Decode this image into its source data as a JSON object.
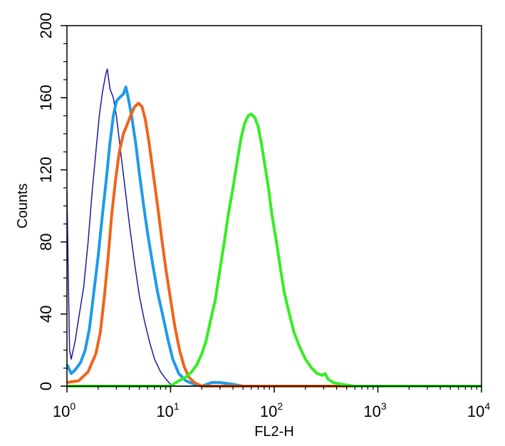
{
  "chart_data": {
    "type": "line",
    "title": "",
    "xlabel": "FL2-H",
    "ylabel": "Counts",
    "xscale": "log",
    "xlim": [
      1,
      10000
    ],
    "ylim": [
      0,
      200
    ],
    "x_ticks": [
      {
        "base": "10",
        "exp": "0",
        "value": 1
      },
      {
        "base": "10",
        "exp": "1",
        "value": 10
      },
      {
        "base": "10",
        "exp": "2",
        "value": 100
      },
      {
        "base": "10",
        "exp": "3",
        "value": 1000
      },
      {
        "base": "10",
        "exp": "4",
        "value": 10000
      }
    ],
    "y_ticks": [
      {
        "label": "0",
        "value": 0
      },
      {
        "label": "40",
        "value": 40
      },
      {
        "label": "80",
        "value": 80
      },
      {
        "label": "120",
        "value": 120
      },
      {
        "label": "160",
        "value": 160
      },
      {
        "label": "200",
        "value": 200
      }
    ],
    "grid": false,
    "legend": "none",
    "series": [
      {
        "color": "#1a1aa0",
        "stroke": 1.5,
        "points": [
          [
            1.0,
            108
          ],
          [
            1.03,
            60
          ],
          [
            1.06,
            20
          ],
          [
            1.1,
            15
          ],
          [
            1.2,
            25
          ],
          [
            1.3,
            38
          ],
          [
            1.45,
            55
          ],
          [
            1.6,
            80
          ],
          [
            1.75,
            108
          ],
          [
            1.9,
            130
          ],
          [
            2.05,
            150
          ],
          [
            2.2,
            163
          ],
          [
            2.35,
            172
          ],
          [
            2.45,
            176
          ],
          [
            2.6,
            165
          ],
          [
            2.8,
            160
          ],
          [
            3.0,
            150
          ],
          [
            3.3,
            130
          ],
          [
            3.6,
            112
          ],
          [
            4.0,
            90
          ],
          [
            4.5,
            68
          ],
          [
            5.0,
            50
          ],
          [
            5.6,
            36
          ],
          [
            6.3,
            24
          ],
          [
            7.0,
            15
          ],
          [
            8.0,
            8
          ],
          [
            9.0,
            4
          ],
          [
            10.0,
            1
          ],
          [
            11.0,
            0
          ],
          [
            10000,
            0
          ]
        ]
      },
      {
        "color": "#1e9be8",
        "stroke": 4,
        "points": [
          [
            1.0,
            12
          ],
          [
            1.1,
            7
          ],
          [
            1.2,
            9
          ],
          [
            1.35,
            13
          ],
          [
            1.5,
            20
          ],
          [
            1.65,
            32
          ],
          [
            1.8,
            50
          ],
          [
            2.0,
            72
          ],
          [
            2.2,
            95
          ],
          [
            2.4,
            115
          ],
          [
            2.6,
            135
          ],
          [
            2.8,
            150
          ],
          [
            3.0,
            158
          ],
          [
            3.2,
            160
          ],
          [
            3.5,
            162
          ],
          [
            3.7,
            166
          ],
          [
            3.9,
            160
          ],
          [
            4.2,
            150
          ],
          [
            4.6,
            135
          ],
          [
            5.0,
            118
          ],
          [
            5.5,
            100
          ],
          [
            6.0,
            85
          ],
          [
            6.7,
            68
          ],
          [
            7.5,
            52
          ],
          [
            8.5,
            38
          ],
          [
            9.5,
            25
          ],
          [
            10.5,
            15
          ],
          [
            12.0,
            7
          ],
          [
            14.0,
            3
          ],
          [
            17.0,
            1
          ],
          [
            20.0,
            0
          ],
          [
            25.0,
            2
          ],
          [
            30.0,
            2
          ],
          [
            40.0,
            1
          ],
          [
            50.0,
            0
          ],
          [
            10000,
            0
          ]
        ]
      },
      {
        "color": "#f06418",
        "stroke": 4,
        "points": [
          [
            1.0,
            2
          ],
          [
            1.3,
            3
          ],
          [
            1.6,
            8
          ],
          [
            1.9,
            18
          ],
          [
            2.1,
            30
          ],
          [
            2.3,
            50
          ],
          [
            2.5,
            72
          ],
          [
            2.7,
            95
          ],
          [
            2.95,
            115
          ],
          [
            3.2,
            130
          ],
          [
            3.5,
            140
          ],
          [
            3.8,
            145
          ],
          [
            4.1,
            150
          ],
          [
            4.5,
            155
          ],
          [
            4.9,
            157
          ],
          [
            5.3,
            155
          ],
          [
            5.7,
            148
          ],
          [
            6.2,
            135
          ],
          [
            6.8,
            118
          ],
          [
            7.5,
            100
          ],
          [
            8.2,
            82
          ],
          [
            9.0,
            65
          ],
          [
            10.0,
            48
          ],
          [
            11.0,
            33
          ],
          [
            12.2,
            20
          ],
          [
            13.5,
            11
          ],
          [
            15.0,
            5
          ],
          [
            17.0,
            2
          ],
          [
            20.0,
            0
          ],
          [
            10000,
            0
          ]
        ]
      },
      {
        "color": "#33ee22",
        "stroke": 4,
        "points": [
          [
            1.0,
            0
          ],
          [
            10.0,
            0
          ],
          [
            12.0,
            3
          ],
          [
            14.0,
            5
          ],
          [
            16.0,
            8
          ],
          [
            18.0,
            12
          ],
          [
            20.0,
            18
          ],
          [
            22.0,
            25
          ],
          [
            24.0,
            35
          ],
          [
            27.0,
            48
          ],
          [
            30.0,
            65
          ],
          [
            33.0,
            80
          ],
          [
            36.0,
            95
          ],
          [
            40.0,
            110
          ],
          [
            44.0,
            125
          ],
          [
            48.0,
            138
          ],
          [
            52.0,
            146
          ],
          [
            56.0,
            150
          ],
          [
            60.0,
            151
          ],
          [
            65.0,
            149
          ],
          [
            70.0,
            144
          ],
          [
            75.0,
            135
          ],
          [
            80.0,
            125
          ],
          [
            88.0,
            110
          ],
          [
            95.0,
            95
          ],
          [
            105.0,
            80
          ],
          [
            115.0,
            65
          ],
          [
            125.0,
            52
          ],
          [
            140.0,
            40
          ],
          [
            155.0,
            30
          ],
          [
            175.0,
            22
          ],
          [
            200.0,
            15
          ],
          [
            230.0,
            10
          ],
          [
            260.0,
            7
          ],
          [
            290.0,
            6
          ],
          [
            310.0,
            7
          ],
          [
            330.0,
            4
          ],
          [
            370.0,
            2
          ],
          [
            450.0,
            1
          ],
          [
            600.0,
            0
          ],
          [
            10000,
            0
          ]
        ]
      }
    ]
  }
}
